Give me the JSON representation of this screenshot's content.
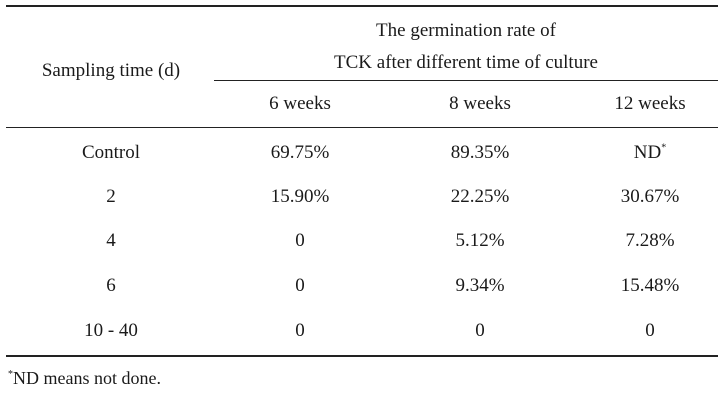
{
  "table": {
    "row_header": "Sampling time (d)",
    "group_header_line1": "The germination rate of",
    "group_header_line2": "TCK after different time of culture",
    "columns": [
      "6 weeks",
      "8 weeks",
      "12 weeks"
    ],
    "rows": [
      {
        "label": "Control",
        "cells": [
          "69.75%",
          "89.35%",
          "ND"
        ],
        "mark": "*"
      },
      {
        "label": "2",
        "cells": [
          "15.90%",
          "22.25%",
          "30.67%"
        ]
      },
      {
        "label": "4",
        "cells": [
          "0",
          "5.12%",
          "7.28%"
        ]
      },
      {
        "label": "6",
        "cells": [
          "0",
          "9.34%",
          "15.48%"
        ]
      },
      {
        "label": "10 - 40",
        "cells": [
          "0",
          "0",
          "0"
        ]
      }
    ]
  },
  "footnote": {
    "mark": "*",
    "text": "ND means not done."
  }
}
